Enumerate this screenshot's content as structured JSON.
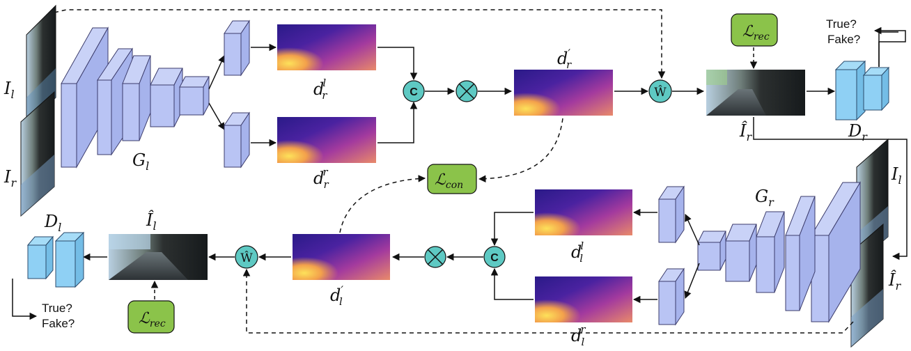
{
  "labels": {
    "I_l_top": "I",
    "I_l_top_sub": "l",
    "I_r_left": "I",
    "I_r_left_sub": "r",
    "G_l": "G",
    "G_l_sub": "l",
    "d_r_l": "d",
    "d_r_l_sub": "r",
    "d_r_l_sup": "l",
    "d_r_r": "d",
    "d_r_r_sub": "r",
    "d_r_r_sup": "r",
    "d_r_prime": "d",
    "d_r_prime_sub": "r",
    "d_r_prime_sup": "′",
    "L_rec_top": "ℒ",
    "L_rec_top_sub": "rec",
    "L_con": "ℒ",
    "L_con_sub": "con",
    "L_rec_bottom": "ℒ",
    "L_rec_bottom_sub": "rec",
    "I_hat_r": "Î",
    "I_hat_r_sub": "r",
    "D_r": "D",
    "D_r_sub": "r",
    "true_top": "True?",
    "fake_top": "Fake?",
    "I_l_right": "I",
    "I_l_right_sub": "l",
    "I_hat_r_right": "Î",
    "I_hat_r_right_sub": "r",
    "G_r": "G",
    "G_r_sub": "r",
    "d_l_l": "d",
    "d_l_l_sub": "l",
    "d_l_l_sup": "l",
    "d_l_r": "d",
    "d_l_r_sub": "l",
    "d_l_r_sup": "r",
    "d_l_prime": "d",
    "d_l_prime_sub": "l",
    "d_l_prime_sup": "′",
    "I_hat_l": "Î",
    "I_hat_l_sub": "l",
    "D_l": "D",
    "D_l_sub": "l",
    "true_bottom": "True?",
    "fake_bottom": "Fake?",
    "concat_symbol": "C",
    "warp_symbol": "Ŵ",
    "multiply_symbol": "⊗"
  },
  "colors": {
    "block_fill": "#b9c4f4",
    "block_side": "#a8b4ee",
    "disc_fill": "#8fd0f4",
    "loss_fill": "#8bc34a",
    "op_fill": "#5ec9c3",
    "depth_dark": "#3a1e8c",
    "depth_mid": "#8a2aa6",
    "depth_light": "#e37b5b",
    "depth_yellow": "#f9d048"
  }
}
